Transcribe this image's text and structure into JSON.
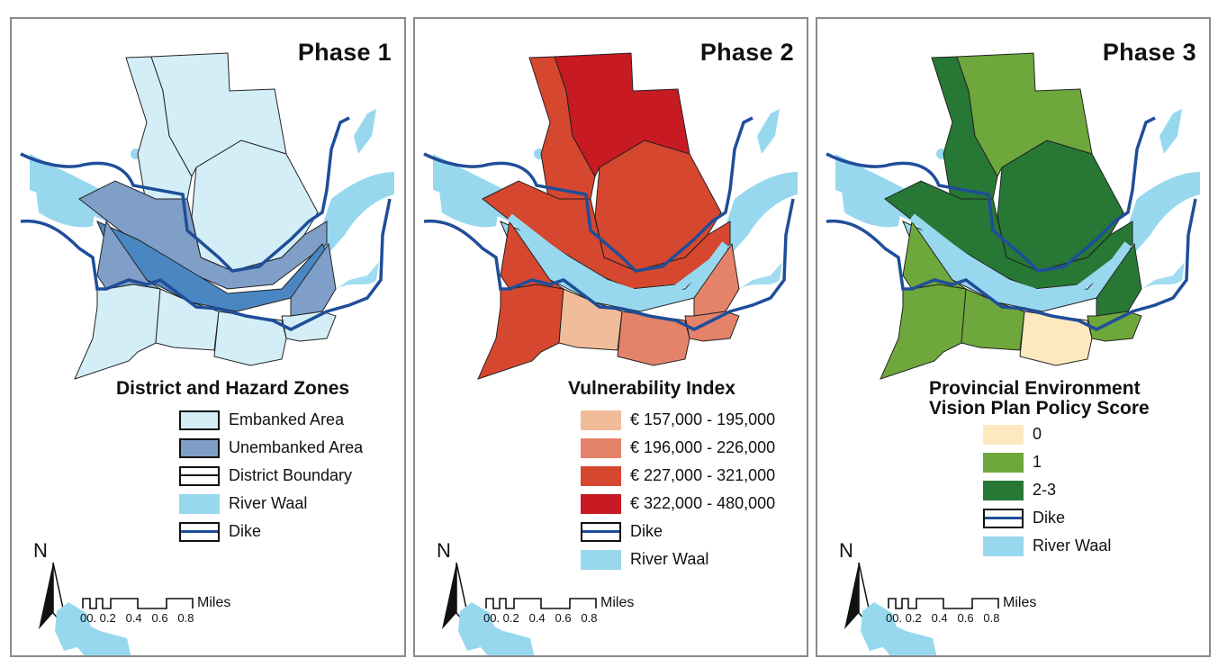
{
  "figure": {
    "colors": {
      "river": "#97d8ef",
      "dike": "#1f4e99",
      "boundary": "#222222",
      "panel_border": "#8a8a8a"
    },
    "panels": [
      {
        "title": "Phase 1",
        "legend": {
          "title": "District and Hazard Zones",
          "items": [
            {
              "label": "Embanked Area",
              "color": "#d4eef7",
              "type": "fill-outlined"
            },
            {
              "label": "Unembanked Area",
              "color": "#7f9ec8",
              "type": "fill-outlined"
            },
            {
              "label": "District Boundary",
              "color": "#ffffff",
              "type": "boundary"
            },
            {
              "label": "River Waal",
              "color": "#97d8ef",
              "type": "fill"
            },
            {
              "label": "Dike",
              "color": "#1f4e99",
              "type": "dike"
            }
          ]
        },
        "fills": {
          "nw": "#d4eef7",
          "n": "#d4eef7",
          "ne": "#d4eef7",
          "unembanked_n": "#7f9ec8",
          "unembanked_s": "#7f9ec8",
          "unembanked_e": "#7f9ec8",
          "sw": "#d4eef7",
          "s": "#d4eef7",
          "sc": "#d4eef7",
          "se": "#d4eef7",
          "river_inner": "#4a87c2"
        }
      },
      {
        "title": "Phase 2",
        "legend": {
          "title": "Vulnerability Index",
          "items": [
            {
              "label": "€ 157,000 - 195,000",
              "color": "#f0bc9a",
              "type": "fill"
            },
            {
              "label": "€ 196,000 - 226,000",
              "color": "#e4826a",
              "type": "fill"
            },
            {
              "label": "€ 227,000 - 321,000",
              "color": "#d6472f",
              "type": "fill"
            },
            {
              "label": "€ 322,000 - 480,000",
              "color": "#c81a22",
              "type": "fill"
            },
            {
              "label": "Dike",
              "color": "#1f4e99",
              "type": "dike"
            },
            {
              "label": "River Waal",
              "color": "#97d8ef",
              "type": "fill"
            }
          ]
        },
        "fills": {
          "nw": "#d6472f",
          "n": "#c81a22",
          "ne": "#d6472f",
          "unembanked_n": "#d6472f",
          "unembanked_s": "#d6472f",
          "unembanked_e": "#e4826a",
          "sw": "#d6472f",
          "s": "#f0bc9a",
          "sc": "#e4826a",
          "se": "#e4826a",
          "river_inner": "#97d8ef"
        }
      },
      {
        "title": "Phase 3",
        "legend": {
          "title_line1": "Provincial Environment",
          "title_line2": "Vision Plan Policy Score",
          "items": [
            {
              "label": "0",
              "color": "#fde8c0",
              "type": "fill"
            },
            {
              "label": "1",
              "color": "#6ea83c",
              "type": "fill"
            },
            {
              "label": "2-3",
              "color": "#277835",
              "type": "fill"
            },
            {
              "label": "Dike",
              "color": "#1f4e99",
              "type": "dike"
            },
            {
              "label": "River Waal",
              "color": "#97d8ef",
              "type": "fill"
            }
          ]
        },
        "fills": {
          "nw": "#277835",
          "n": "#6ea83c",
          "ne": "#277835",
          "unembanked_n": "#277835",
          "unembanked_s": "#6ea83c",
          "unembanked_e": "#277835",
          "sw": "#6ea83c",
          "s": "#6ea83c",
          "sc": "#fde8c0",
          "se": "#6ea83c",
          "river_inner": "#97d8ef"
        }
      }
    ],
    "north_arrow": {
      "letter": "N"
    },
    "scale_bar": {
      "unit": "Miles",
      "ticks": [
        "0",
        "0.1",
        "0.2",
        "0.4",
        "0.6",
        "0.8"
      ],
      "tick_text": "00. 0.2   0.4   0.6   0.8"
    }
  }
}
